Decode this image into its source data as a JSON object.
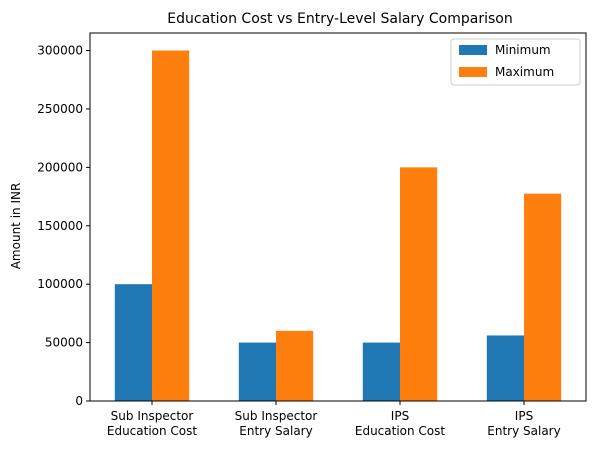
{
  "chart_data": {
    "type": "bar",
    "title": "Education Cost vs Entry-Level Salary Comparison",
    "xlabel": "",
    "ylabel": "Amount in INR",
    "categories": [
      [
        "Sub Inspector",
        "Education Cost"
      ],
      [
        "Sub Inspector",
        "Entry Salary"
      ],
      [
        "IPS",
        "Education Cost"
      ],
      [
        "IPS",
        "Entry Salary"
      ]
    ],
    "series": [
      {
        "name": "Minimum",
        "color": "#1f77b4",
        "values": [
          100000,
          50000,
          50000,
          56100
        ]
      },
      {
        "name": "Maximum",
        "color": "#ff7f0e",
        "values": [
          300000,
          60000,
          200000,
          177500
        ]
      }
    ],
    "ylim": [
      0,
      315000
    ],
    "yticks": [
      0,
      50000,
      100000,
      150000,
      200000,
      250000,
      300000
    ],
    "ytick_labels": [
      "0",
      "50000",
      "100000",
      "150000",
      "200000",
      "250000",
      "300000"
    ],
    "grid": false,
    "legend_position": "top-right"
  }
}
